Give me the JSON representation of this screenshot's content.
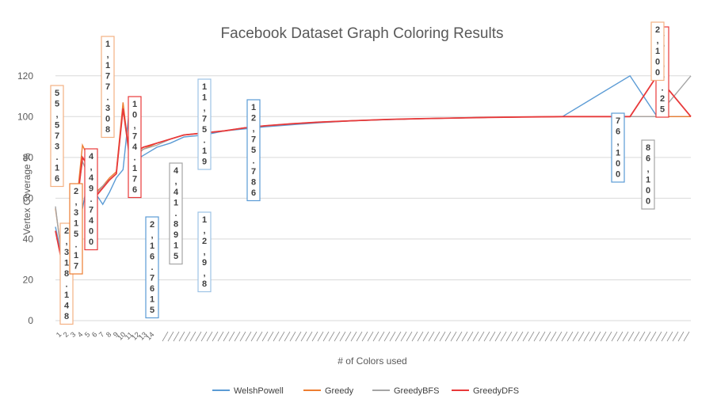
{
  "chart_data": {
    "type": "line",
    "title": "Facebook Dataset Graph Coloring Results",
    "xlabel": "# of Colors used",
    "ylabel": "Vertex Coverage %",
    "ylim": [
      0,
      130
    ],
    "yticks": [
      0,
      20,
      40,
      60,
      80,
      100,
      120
    ],
    "grid": true,
    "legend_position": "bottom",
    "x_ticks_visible": [
      "1",
      "2",
      "3",
      "4",
      "5",
      "6",
      "7",
      "8",
      "9",
      "10",
      "11",
      "12",
      "13",
      "14"
    ],
    "x": [
      1,
      2,
      3,
      4,
      5,
      6,
      7,
      8,
      9,
      10,
      11,
      12,
      13,
      14,
      16,
      18,
      20,
      23,
      26,
      29,
      32,
      36,
      40,
      45,
      50,
      55,
      60,
      65,
      70,
      76,
      86,
      90,
      95
    ],
    "series": [
      {
        "name": "WelshPowell",
        "color": "#5b9bd5",
        "values": [
          46,
          30,
          40,
          51,
          55,
          72,
          62,
          57,
          63,
          70,
          74,
          106,
          79,
          81,
          85,
          87,
          90,
          91,
          93,
          94,
          95,
          96,
          97,
          98,
          98.5,
          99,
          99.3,
          99.6,
          99.8,
          100,
          120,
          100,
          100
        ]
      },
      {
        "name": "Greedy",
        "color": "#ed7d31",
        "values": [
          55,
          31,
          42,
          53,
          86,
          79,
          63,
          66,
          70,
          73,
          107,
          79,
          82,
          84,
          87,
          89,
          91,
          92,
          93,
          94.5,
          95.5,
          96.5,
          97.3,
          98,
          98.6,
          99,
          99.3,
          99.6,
          99.8,
          100,
          100,
          100,
          100
        ]
      },
      {
        "name": "GreedyBFS",
        "color": "#a5a5a5",
        "values": [
          56,
          29,
          42,
          56,
          78,
          70,
          62,
          66,
          69,
          72,
          104,
          78,
          81,
          84,
          86,
          89,
          91,
          92,
          93,
          94.5,
          95.5,
          96.5,
          97.3,
          98,
          98.6,
          99,
          99.3,
          99.6,
          99.8,
          100,
          100,
          100,
          120
        ]
      },
      {
        "name": "GreedyDFS",
        "color": "#e8393a",
        "values": [
          44,
          28,
          41,
          52,
          80,
          75,
          61,
          65,
          69,
          72,
          104,
          80,
          83,
          85,
          87,
          89,
          91,
          92,
          93,
          94.5,
          95.5,
          96.5,
          97.3,
          98,
          98.6,
          99,
          99.3,
          99.6,
          99.8,
          100,
          100,
          120,
          100
        ]
      }
    ],
    "data_labels": [
      {
        "text": "55,573.16",
        "color": "#f4b183",
        "series": "Greedy"
      },
      {
        "text": "2,318.148",
        "color": "#f4b183",
        "series": "Greedy"
      },
      {
        "text": "2,315.17",
        "color": "#ed7d31",
        "series": "Greedy"
      },
      {
        "text": "4,49.7400",
        "color": "#e8393a",
        "series": "GreedyDFS"
      },
      {
        "text": "1,177.308",
        "color": "#f4b183",
        "series": "Greedy"
      },
      {
        "text": "10,74.176",
        "color": "#e8393a",
        "series": "GreedyDFS"
      },
      {
        "text": "2,16.7615",
        "color": "#5b9bd5",
        "series": "WelshPowell"
      },
      {
        "text": "4,41.8915",
        "color": "#a5a5a5",
        "series": "GreedyBFS"
      },
      {
        "text": "11,75.19",
        "color": "#9dc3e6",
        "series": "WelshPowell"
      },
      {
        "text": "1,2,9,8",
        "color": "#9dc3e6",
        "series": "WelshPowell"
      },
      {
        "text": "12,75.786",
        "color": "#5b9bd5",
        "series": "WelshPowell"
      },
      {
        "text": "76,100",
        "color": "#5b9bd5",
        "series": "WelshPowell"
      },
      {
        "text": "86,100",
        "color": "#a5a5a5",
        "series": "GreedyBFS"
      },
      {
        "text": "85,99.25",
        "color": "#e8393a",
        "series": "GreedyDFS"
      },
      {
        "text": "2,100",
        "color": "#f4b183",
        "series": "Greedy"
      }
    ]
  }
}
